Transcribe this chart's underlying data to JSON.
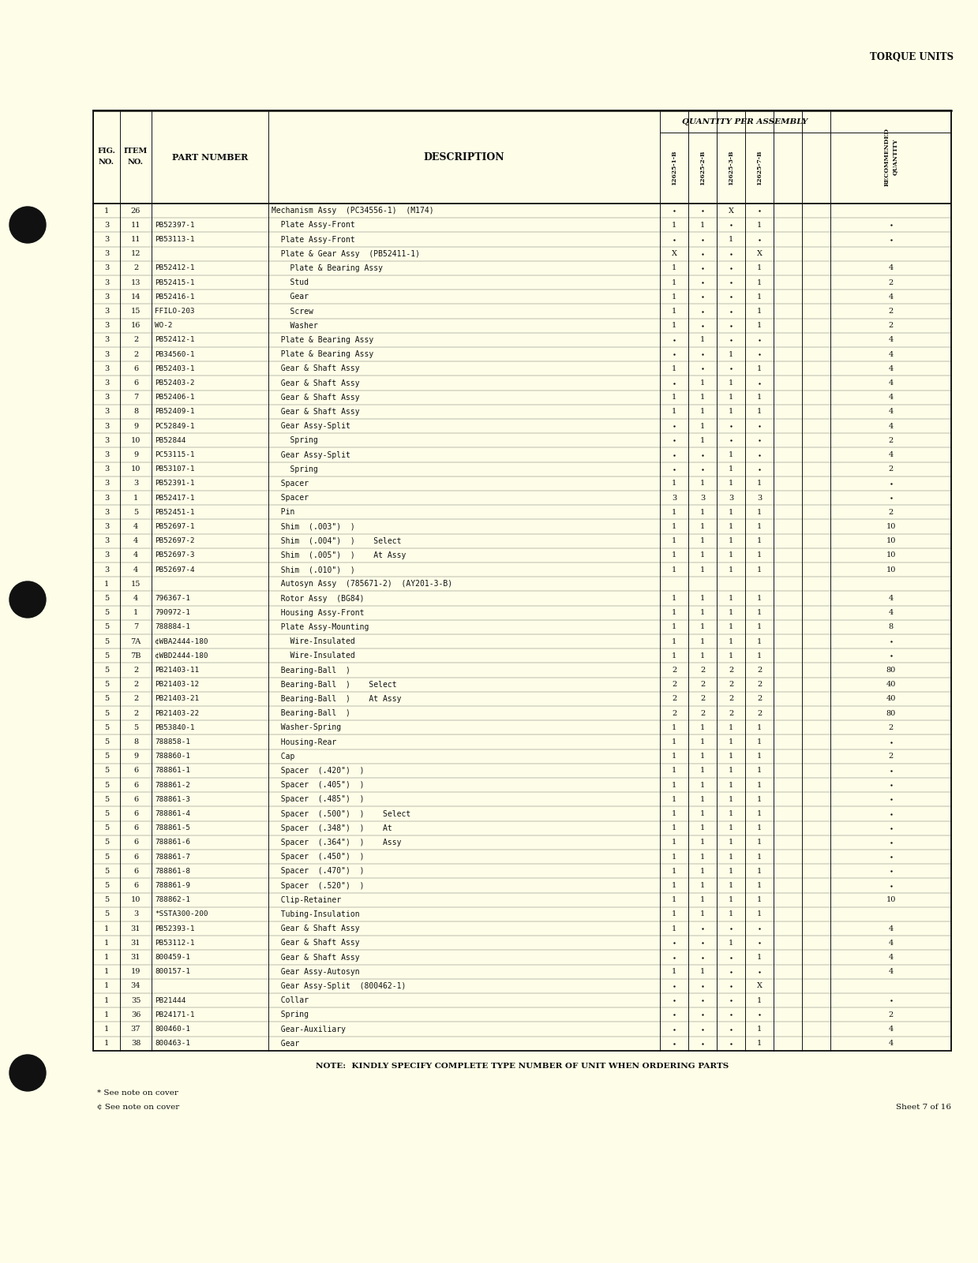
{
  "page_title": "TORQUE UNITS",
  "qty_per_assembly_label": "QUANTITY PER ASSEMBLY",
  "rows": [
    [
      "1",
      "26",
      "",
      "Mechanism Assy  (PC34556-1)  (M174)",
      "-",
      "-",
      "X",
      "-",
      "",
      ""
    ],
    [
      "3",
      "11",
      "PB52397-1",
      "  Plate Assy-Front",
      "1",
      "1",
      "-",
      "1",
      "",
      "-"
    ],
    [
      "3",
      "11",
      "PB53113-1",
      "  Plate Assy-Front",
      "-",
      "-",
      "1",
      "-",
      "",
      "-"
    ],
    [
      "3",
      "12",
      "",
      "  Plate & Gear Assy  (PB52411-1)",
      "X",
      "-",
      "-",
      "X",
      "",
      ""
    ],
    [
      "3",
      "2",
      "PB52412-1",
      "    Plate & Bearing Assy",
      "1",
      "-",
      "-",
      "1",
      "",
      "4"
    ],
    [
      "3",
      "13",
      "PB52415-1",
      "    Stud",
      "1",
      "-",
      "-",
      "1",
      "",
      "2"
    ],
    [
      "3",
      "14",
      "PB52416-1",
      "    Gear",
      "1",
      "-",
      "-",
      "1",
      "",
      "4"
    ],
    [
      "3",
      "15",
      "FFILO-203",
      "    Screw",
      "1",
      "-",
      "-",
      "1",
      "",
      "2"
    ],
    [
      "3",
      "16",
      "WO-2",
      "    Washer",
      "1",
      "-",
      "-",
      "1",
      "",
      "2"
    ],
    [
      "3",
      "2",
      "PB52412-1",
      "  Plate & Bearing Assy",
      "-",
      "1",
      "-",
      "-",
      "",
      "4"
    ],
    [
      "3",
      "2",
      "PB34560-1",
      "  Plate & Bearing Assy",
      "-",
      "-",
      "1",
      "-",
      "",
      "4"
    ],
    [
      "3",
      "6",
      "PB52403-1",
      "  Gear & Shaft Assy",
      "1",
      "-",
      "-",
      "1",
      "",
      "4"
    ],
    [
      "3",
      "6",
      "PB52403-2",
      "  Gear & Shaft Assy",
      "-",
      "1",
      "1",
      "-",
      "",
      "4"
    ],
    [
      "3",
      "7",
      "PB52406-1",
      "  Gear & Shaft Assy",
      "1",
      "1",
      "1",
      "1",
      "",
      "4"
    ],
    [
      "3",
      "8",
      "PB52409-1",
      "  Gear & Shaft Assy",
      "1",
      "1",
      "1",
      "1",
      "",
      "4"
    ],
    [
      "3",
      "9",
      "PC52849-1",
      "  Gear Assy-Split",
      "-",
      "1",
      "-",
      "-",
      "",
      "4"
    ],
    [
      "3",
      "10",
      "PB52844",
      "    Spring",
      "-",
      "1",
      "-",
      "-",
      "",
      "2"
    ],
    [
      "3",
      "9",
      "PC53115-1",
      "  Gear Assy-Split",
      "-",
      "-",
      "1",
      "-",
      "",
      "4"
    ],
    [
      "3",
      "10",
      "PB53107-1",
      "    Spring",
      "-",
      "-",
      "1",
      "-",
      "",
      "2"
    ],
    [
      "3",
      "3",
      "PB52391-1",
      "  Spacer",
      "1",
      "1",
      "1",
      "1",
      "",
      "-"
    ],
    [
      "3",
      "1",
      "PB52417-1",
      "  Spacer",
      "3",
      "3",
      "3",
      "3",
      "",
      "-"
    ],
    [
      "3",
      "5",
      "PB52451-1",
      "  Pin",
      "1",
      "1",
      "1",
      "1",
      "",
      "2"
    ],
    [
      "3",
      "4",
      "PB52697-1",
      "  Shim  (.003\")  )",
      "1",
      "1",
      "1",
      "1",
      "",
      "10"
    ],
    [
      "3",
      "4",
      "PB52697-2",
      "  Shim  (.004\")  )    Select",
      "1",
      "1",
      "1",
      "1",
      "",
      "10"
    ],
    [
      "3",
      "4",
      "PB52697-3",
      "  Shim  (.005\")  )    At Assy",
      "1",
      "1",
      "1",
      "1",
      "",
      "10"
    ],
    [
      "3",
      "4",
      "PB52697-4",
      "  Shim  (.010\")  )",
      "1",
      "1",
      "1",
      "1",
      "",
      "10"
    ],
    [
      "1",
      "15",
      "",
      "  Autosyn Assy  (785671-2)  (AY201-3-B)",
      "",
      "",
      "",
      "",
      "",
      ""
    ],
    [
      "5",
      "4",
      "796367-1",
      "  Rotor Assy  (BG84)",
      "1",
      "1",
      "1",
      "1",
      "",
      "4"
    ],
    [
      "5",
      "1",
      "790972-1",
      "  Housing Assy-Front",
      "1",
      "1",
      "1",
      "1",
      "",
      "4"
    ],
    [
      "5",
      "7",
      "788884-1",
      "  Plate Assy-Mounting",
      "1",
      "1",
      "1",
      "1",
      "",
      "8"
    ],
    [
      "5",
      "7A",
      "¢WBA2444-180",
      "    Wire-Insulated",
      "1",
      "1",
      "1",
      "1",
      "",
      "-"
    ],
    [
      "5",
      "7B",
      "¢WBD2444-180",
      "    Wire-Insulated",
      "1",
      "1",
      "1",
      "1",
      "",
      "-"
    ],
    [
      "5",
      "2",
      "PB21403-11",
      "  Bearing-Ball  )",
      "2",
      "2",
      "2",
      "2",
      "",
      "80"
    ],
    [
      "5",
      "2",
      "PB21403-12",
      "  Bearing-Ball  )    Select",
      "2",
      "2",
      "2",
      "2",
      "",
      "40"
    ],
    [
      "5",
      "2",
      "PB21403-21",
      "  Bearing-Ball  )    At Assy",
      "2",
      "2",
      "2",
      "2",
      "",
      "40"
    ],
    [
      "5",
      "2",
      "PB21403-22",
      "  Bearing-Ball  )",
      "2",
      "2",
      "2",
      "2",
      "",
      "80"
    ],
    [
      "5",
      "5",
      "PB53840-1",
      "  Washer-Spring",
      "1",
      "1",
      "1",
      "1",
      "",
      "2"
    ],
    [
      "5",
      "8",
      "788858-1",
      "  Housing-Rear",
      "1",
      "1",
      "1",
      "1",
      "",
      "-"
    ],
    [
      "5",
      "9",
      "788860-1",
      "  Cap",
      "1",
      "1",
      "1",
      "1",
      "",
      "2"
    ],
    [
      "5",
      "6",
      "788861-1",
      "  Spacer  (.420\")  )",
      "1",
      "1",
      "1",
      "1",
      "",
      "-"
    ],
    [
      "5",
      "6",
      "788861-2",
      "  Spacer  (.405\")  )",
      "1",
      "1",
      "1",
      "1",
      "",
      "-"
    ],
    [
      "5",
      "6",
      "788861-3",
      "  Spacer  (.485\")  )",
      "1",
      "1",
      "1",
      "1",
      "",
      "-"
    ],
    [
      "5",
      "6",
      "788861-4",
      "  Spacer  (.500\")  )    Select",
      "1",
      "1",
      "1",
      "1",
      "",
      "-"
    ],
    [
      "5",
      "6",
      "788861-5",
      "  Spacer  (.348\")  )    At",
      "1",
      "1",
      "1",
      "1",
      "",
      "-"
    ],
    [
      "5",
      "6",
      "788861-6",
      "  Spacer  (.364\")  )    Assy",
      "1",
      "1",
      "1",
      "1",
      "",
      "-"
    ],
    [
      "5",
      "6",
      "788861-7",
      "  Spacer  (.450\")  )",
      "1",
      "1",
      "1",
      "1",
      "",
      "-"
    ],
    [
      "5",
      "6",
      "788861-8",
      "  Spacer  (.470\")  )",
      "1",
      "1",
      "1",
      "1",
      "",
      "-"
    ],
    [
      "5",
      "6",
      "788861-9",
      "  Spacer  (.520\")  )",
      "1",
      "1",
      "1",
      "1",
      "",
      "-"
    ],
    [
      "5",
      "10",
      "788862-1",
      "  Clip-Retainer",
      "1",
      "1",
      "1",
      "1",
      "",
      "10"
    ],
    [
      "5",
      "3",
      "*SSTA300-200",
      "  Tubing-Insulation",
      "1",
      "1",
      "1",
      "1",
      "",
      ""
    ],
    [
      "1",
      "31",
      "PB52393-1",
      "  Gear & Shaft Assy",
      "1",
      "-",
      "-",
      "-",
      "",
      "4"
    ],
    [
      "1",
      "31",
      "PB53112-1",
      "  Gear & Shaft Assy",
      "-",
      "-",
      "1",
      "-",
      "",
      "4"
    ],
    [
      "1",
      "31",
      "800459-1",
      "  Gear & Shaft Assy",
      "-",
      "-",
      "-",
      "1",
      "",
      "4"
    ],
    [
      "1",
      "19",
      "800157-1",
      "  Gear Assy-Autosyn",
      "1",
      "1",
      "-",
      "-",
      "",
      "4"
    ],
    [
      "1",
      "34",
      "",
      "  Gear Assy-Split  (800462-1)",
      "-",
      "-",
      "-",
      "X",
      "",
      ""
    ],
    [
      "1",
      "35",
      "PB21444",
      "  Collar",
      "-",
      "-",
      "-",
      "1",
      "",
      "-"
    ],
    [
      "1",
      "36",
      "PB24171-1",
      "  Spring",
      "-",
      "-",
      "-",
      "-",
      "",
      "2"
    ],
    [
      "1",
      "37",
      "800460-1",
      "  Gear-Auxiliary",
      "-",
      "-",
      "-",
      "1",
      "",
      "4"
    ],
    [
      "1",
      "38",
      "800463-1",
      "  Gear",
      "-",
      "-",
      "-",
      "1",
      "",
      "4"
    ]
  ],
  "note": "NOTE:  KINDLY SPECIFY COMPLETE TYPE NUMBER OF UNIT WHEN ORDERING PARTS",
  "footnote1": "* See note on cover",
  "footnote2": "¢ See note on cover",
  "sheet": "Sheet 7 of 16",
  "bg_color": "#FEFEE8",
  "text_color": "#111111",
  "dot_color": "#111111"
}
